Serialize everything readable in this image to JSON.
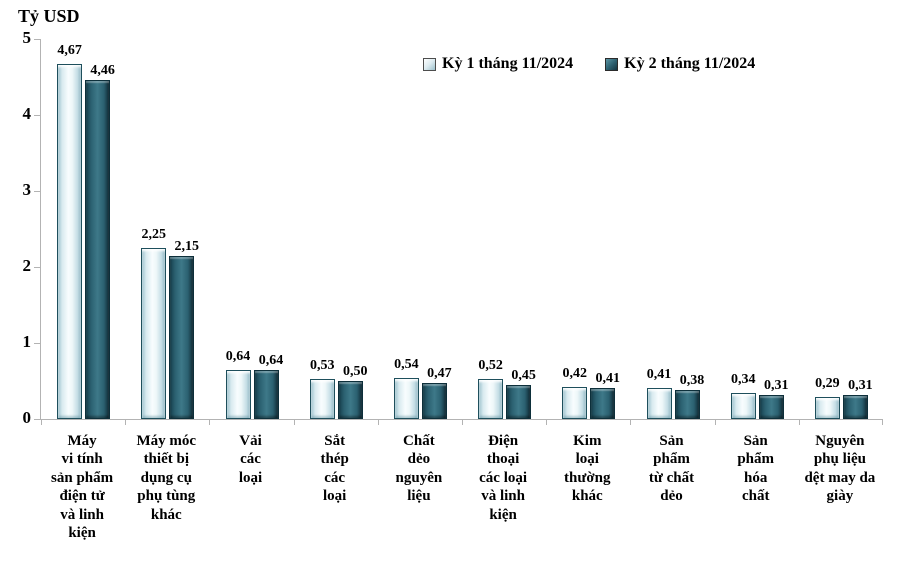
{
  "chart_data": {
    "type": "bar",
    "title": "",
    "unit_label": "Tỷ USD",
    "categories": [
      "Máy\nvi tính\nsản phẩm\nđiện tử\nvà linh\nkiện",
      "Máy móc\nthiết bị\ndụng cụ\nphụ tùng\nkhác",
      "Vải\ncác\nloại",
      "Sắt\nthép\ncác\nloại",
      "Chất\ndẻo\nnguyên\nliệu",
      "Điện\nthoại\ncác loại\nvà linh\nkiện",
      "Kim\nloại\nthường\nkhác",
      "Sản\nphẩm\ntừ chất\ndẻo",
      "Sản\nphẩm\nhóa\nchất",
      "Nguyên\nphụ liệu\ndệt may da\ngiày"
    ],
    "series": [
      {
        "name": "Kỳ 1 tháng 11/2024",
        "values": [
          4.67,
          2.25,
          0.64,
          0.53,
          0.54,
          0.52,
          0.42,
          0.41,
          0.34,
          0.29
        ],
        "value_labels": [
          "4,67",
          "2,25",
          "0,64",
          "0,53",
          "0,54",
          "0,52",
          "0,42",
          "0,41",
          "0,34",
          "0,29"
        ]
      },
      {
        "name": "Kỳ 2 tháng 11/2024",
        "values": [
          4.46,
          2.15,
          0.64,
          0.5,
          0.47,
          0.45,
          0.41,
          0.38,
          0.31,
          0.31
        ],
        "value_labels": [
          "4,46",
          "2,15",
          "0,64",
          "0,50",
          "0,47",
          "0,45",
          "0,41",
          "0,38",
          "0,31",
          "0,31"
        ]
      }
    ],
    "ylim": [
      0,
      5
    ],
    "yticks": [
      0,
      1,
      2,
      3,
      4,
      5
    ],
    "grid": false,
    "legend_position": "top-center",
    "colors": {
      "series1_fill": "#eaf4f7",
      "series2_fill": "#2e6373",
      "axis": "#b3b3b3",
      "text": "#000000"
    }
  }
}
